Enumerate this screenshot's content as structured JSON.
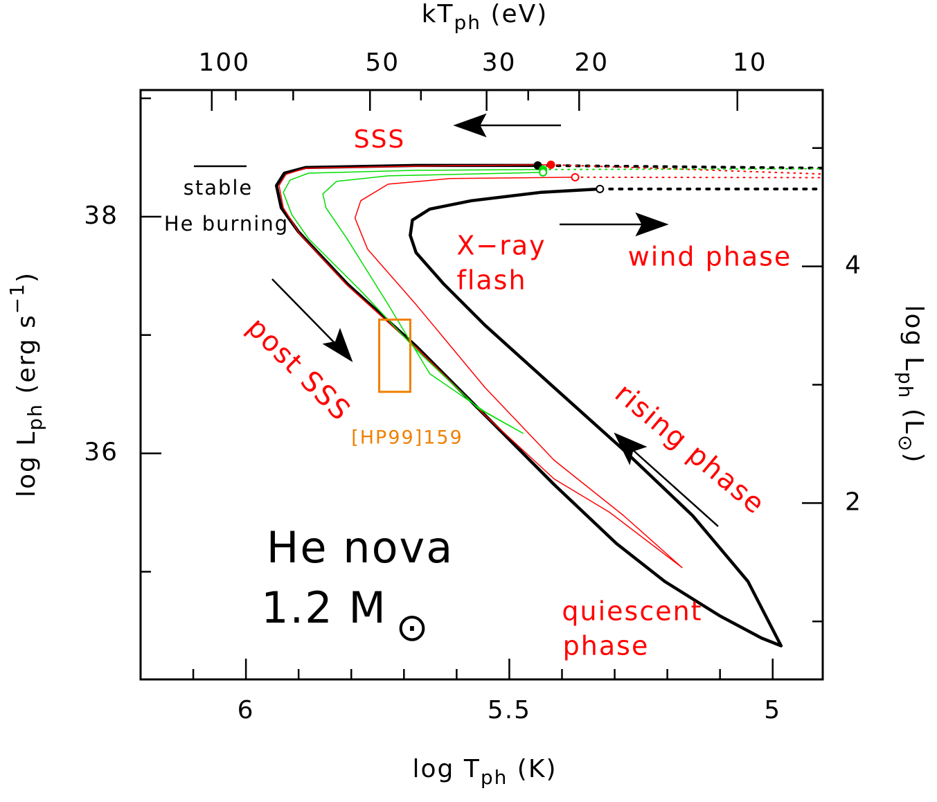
{
  "chart_data": {
    "type": "line",
    "xlabel": [
      {
        "text": "log T"
      },
      {
        "text": "ph",
        "shift": "sub"
      },
      {
        "text": " (K)"
      }
    ],
    "x2label": [
      {
        "text": "kT"
      },
      {
        "text": "ph",
        "shift": "sub"
      },
      {
        "text": " (eV)"
      }
    ],
    "ylabel": [
      {
        "text": "log L"
      },
      {
        "text": "ph",
        "shift": "sub"
      },
      {
        "text": " (erg s"
      },
      {
        "text": "−1",
        "shift": "super"
      },
      {
        "text": ")"
      }
    ],
    "y2label": [
      {
        "text": "log L"
      },
      {
        "text": "ph",
        "shift": "sub"
      },
      {
        "text": " (L"
      },
      {
        "text": "⊙",
        "shift": "sub"
      },
      {
        "text": ")"
      }
    ],
    "xlim": [
      6.2,
      4.905
    ],
    "xticks": [
      6,
      5.5,
      5
    ],
    "xminor": [
      6.1,
      5.9,
      5.8,
      5.7,
      5.6,
      5.4,
      5.3,
      5.2,
      5.1
    ],
    "x2lim": [
      136.6,
      6.88
    ],
    "x2scale": "log",
    "x2ticks": [
      100,
      50,
      30,
      20,
      10
    ],
    "x2minor": [
      90,
      70,
      40,
      25
    ],
    "ylim": [
      34.09,
      39.07
    ],
    "yticks": [
      38,
      36
    ],
    "yminor": [
      39,
      37,
      35
    ],
    "y2lim": [
      0.51,
      5.49
    ],
    "y2ticks": [
      4,
      2
    ],
    "y2minor": [
      5,
      3,
      1
    ],
    "series": [
      {
        "color": "#000000",
        "width": 4.5,
        "dash": "none",
        "start_marker": "open",
        "end_marker": "filled",
        "x": [
          5.328,
          5.441,
          5.572,
          5.651,
          5.684,
          5.688,
          5.677,
          5.625,
          5.546,
          5.415,
          5.283,
          5.152,
          5.047,
          4.984,
          5.021,
          5.1,
          5.205,
          5.297,
          5.415,
          5.546,
          5.677,
          5.808,
          5.9,
          5.933,
          5.942,
          5.927,
          5.887,
          5.677,
          5.446
        ],
        "y": [
          38.234,
          38.205,
          38.135,
          38.064,
          37.971,
          37.842,
          37.696,
          37.433,
          37.082,
          36.556,
          36.029,
          35.474,
          34.918,
          34.374,
          34.439,
          34.626,
          34.918,
          35.24,
          35.737,
          36.322,
          36.906,
          37.433,
          37.871,
          38.076,
          38.263,
          38.368,
          38.415,
          38.433,
          38.433
        ]
      },
      {
        "color": "#ff0000",
        "width": 1.5,
        "dash": "none",
        "start_marker": "filled",
        "end_marker": "open",
        "x": [
          5.421,
          5.677,
          5.887,
          5.924,
          5.937,
          5.929,
          5.898,
          5.808,
          5.677,
          5.546,
          5.415,
          5.31,
          5.172,
          5.283,
          5.415,
          5.546,
          5.677,
          5.769,
          5.793,
          5.782,
          5.73,
          5.612,
          5.375
        ],
        "y": [
          38.439,
          38.427,
          38.409,
          38.357,
          38.263,
          38.076,
          37.854,
          37.421,
          36.895,
          36.322,
          35.784,
          35.503,
          35.035,
          35.474,
          35.942,
          36.556,
          37.257,
          37.725,
          37.988,
          38.135,
          38.275,
          38.322,
          38.333
        ]
      },
      {
        "color": "#00dd00",
        "width": 1.5,
        "dash": "none",
        "start_marker": "filled",
        "end_marker": "open",
        "x": [
          5.436,
          5.677,
          5.881,
          5.916,
          5.929,
          5.913,
          5.881,
          5.782,
          5.677,
          5.559,
          5.474,
          5.546,
          5.651,
          5.73,
          5.808,
          5.848,
          5.854,
          5.828,
          5.73,
          5.436
        ],
        "y": [
          38.398,
          38.392,
          38.368,
          38.31,
          38.205,
          38.018,
          37.813,
          37.374,
          36.877,
          36.38,
          36.17,
          36.351,
          36.673,
          37.257,
          37.813,
          38.076,
          38.193,
          38.298,
          38.345,
          38.374
        ]
      },
      {
        "color": "#000000",
        "width": 4,
        "dash": "4 10",
        "x": [
          5.446,
          4.905
        ],
        "y": [
          38.433,
          38.41
        ]
      },
      {
        "color": "#000000",
        "width": 4,
        "dash": "4 10",
        "x": [
          5.328,
          4.905
        ],
        "y": [
          38.234,
          38.234
        ]
      },
      {
        "color": "#ff0000",
        "width": 2,
        "dash": "2 7",
        "x": [
          5.421,
          4.905
        ],
        "y": [
          38.439,
          38.36
        ]
      },
      {
        "color": "#ff0000",
        "width": 2,
        "dash": "2 7",
        "x": [
          5.375,
          4.905
        ],
        "y": [
          38.333,
          38.33
        ]
      },
      {
        "color": "#00dd00",
        "width": 2,
        "dash": "2 7",
        "x": [
          5.436,
          4.905
        ],
        "y": [
          38.398,
          38.405
        ]
      }
    ],
    "box": {
      "label": "[HP99]159",
      "color": "#f08000",
      "xlim": [
        5.747,
        5.688
      ],
      "ylim": [
        36.52,
        37.13
      ]
    },
    "annotations": [
      {
        "text": "SSS",
        "color": "#ff0000"
      },
      {
        "text": "stable",
        "color": "#000000"
      },
      {
        "text": "He burning",
        "color": "#000000"
      },
      {
        "text": "X−ray",
        "color": "#ff0000"
      },
      {
        "text": "flash",
        "color": "#ff0000"
      },
      {
        "text": "wind phase",
        "color": "#ff0000"
      },
      {
        "text": "post SSS",
        "color": "#ff0000"
      },
      {
        "text": "rising phase",
        "color": "#ff0000"
      },
      {
        "text": "quiescent",
        "color": "#ff0000"
      },
      {
        "text": "phase",
        "color": "#ff0000"
      },
      {
        "text": "He nova",
        "color": "#000000"
      },
      {
        "text": "1.2 M",
        "sub": "⊙",
        "color": "#000000"
      }
    ]
  }
}
